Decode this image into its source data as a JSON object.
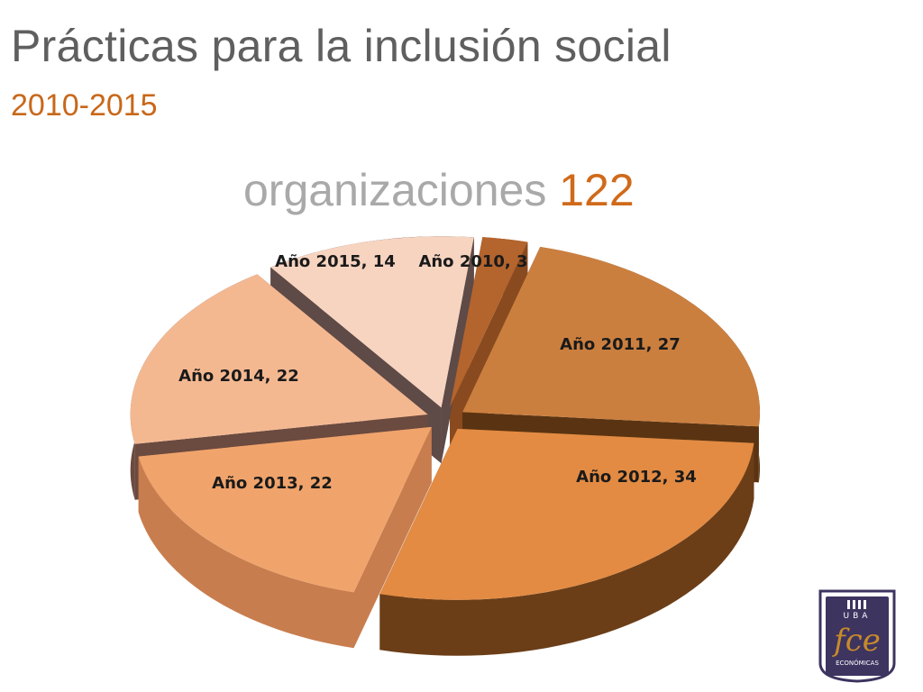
{
  "slide": {
    "title": "Prácticas para la inclusión social",
    "subtitle": "2010-2015",
    "total_label": "organizaciones",
    "total_value": "122"
  },
  "chart_data": {
    "type": "pie",
    "style": "3d-exploded",
    "title": "",
    "slices": [
      {
        "label": "Año 2010",
        "value": 3,
        "text": "Año 2010, 3",
        "color": "#b4642d",
        "side_color": "#8a4a1f"
      },
      {
        "label": "Año 2011",
        "value": 27,
        "text": "Año 2011, 27",
        "color": "#cb7f3f",
        "side_color": "#5a3412"
      },
      {
        "label": "Año 2012",
        "value": 34,
        "text": "Año 2012, 34",
        "color": "#e38b43",
        "side_color": "#6b3e18"
      },
      {
        "label": "Año 2013",
        "value": 22,
        "text": "Año 2013, 22",
        "color": "#f0a46c",
        "side_color": "#c87d4e"
      },
      {
        "label": "Año 2014",
        "value": 22,
        "text": "Año 2014, 22",
        "color": "#f4b891",
        "side_color": "#6b4a3f"
      },
      {
        "label": "Año 2015",
        "value": 14,
        "text": "Año 2015, 14",
        "color": "#f7d4c0",
        "side_color": "#5e4a46"
      }
    ]
  },
  "logo": {
    "top_text": "UBA",
    "main_text": "fce",
    "bottom_text": "ECONÓMICAS",
    "frame_color": "#3d3460",
    "accent_color": "#c88a2a"
  }
}
